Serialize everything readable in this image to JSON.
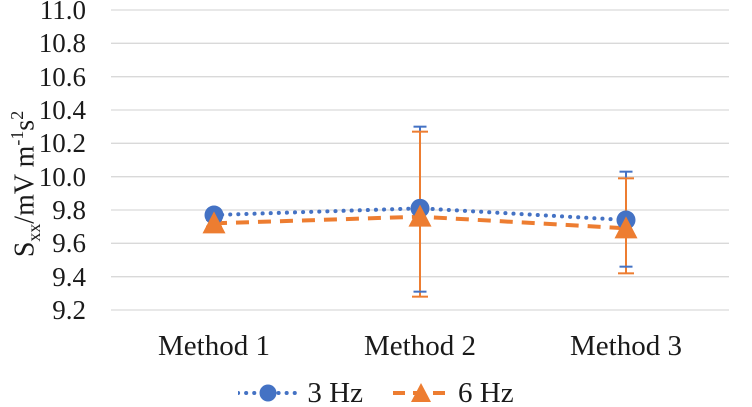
{
  "chart_data": {
    "type": "line",
    "title": "",
    "categories": [
      "Method 1",
      "Method 2",
      "Method 3"
    ],
    "series": [
      {
        "name": "3 Hz",
        "color": "#4472C4",
        "marker": "circle",
        "line_style": "dotted",
        "values": [
          9.77,
          9.81,
          9.74
        ],
        "err_up": [
          0.02,
          0.49,
          0.29
        ],
        "err_down": [
          0.02,
          0.5,
          0.28
        ]
      },
      {
        "name": "6 Hz",
        "color": "#ED7D31",
        "marker": "triangle",
        "line_style": "dashed",
        "values": [
          9.72,
          9.76,
          9.69
        ],
        "err_up": [
          0.02,
          0.51,
          0.3
        ],
        "err_down": [
          0.02,
          0.48,
          0.27
        ]
      }
    ],
    "y_axis": {
      "title": {
        "base1": "S",
        "sub": "xx",
        "mid": "/mV m",
        "sup1": "-1",
        "base2": "s",
        "sup2": "2"
      },
      "ticks": [
        "11.0",
        "10.8",
        "10.6",
        "10.4",
        "10.2",
        "10.0",
        "9.8",
        "9.6",
        "9.4",
        "9.2"
      ],
      "range": [
        9.2,
        11.0
      ],
      "grid": true
    },
    "x_axis": {
      "label": ""
    },
    "legend": {
      "position": "bottom"
    },
    "colors": {
      "gridline": "#D9D9D9",
      "text": "#1a1a1a",
      "background": "#ffffff"
    }
  }
}
